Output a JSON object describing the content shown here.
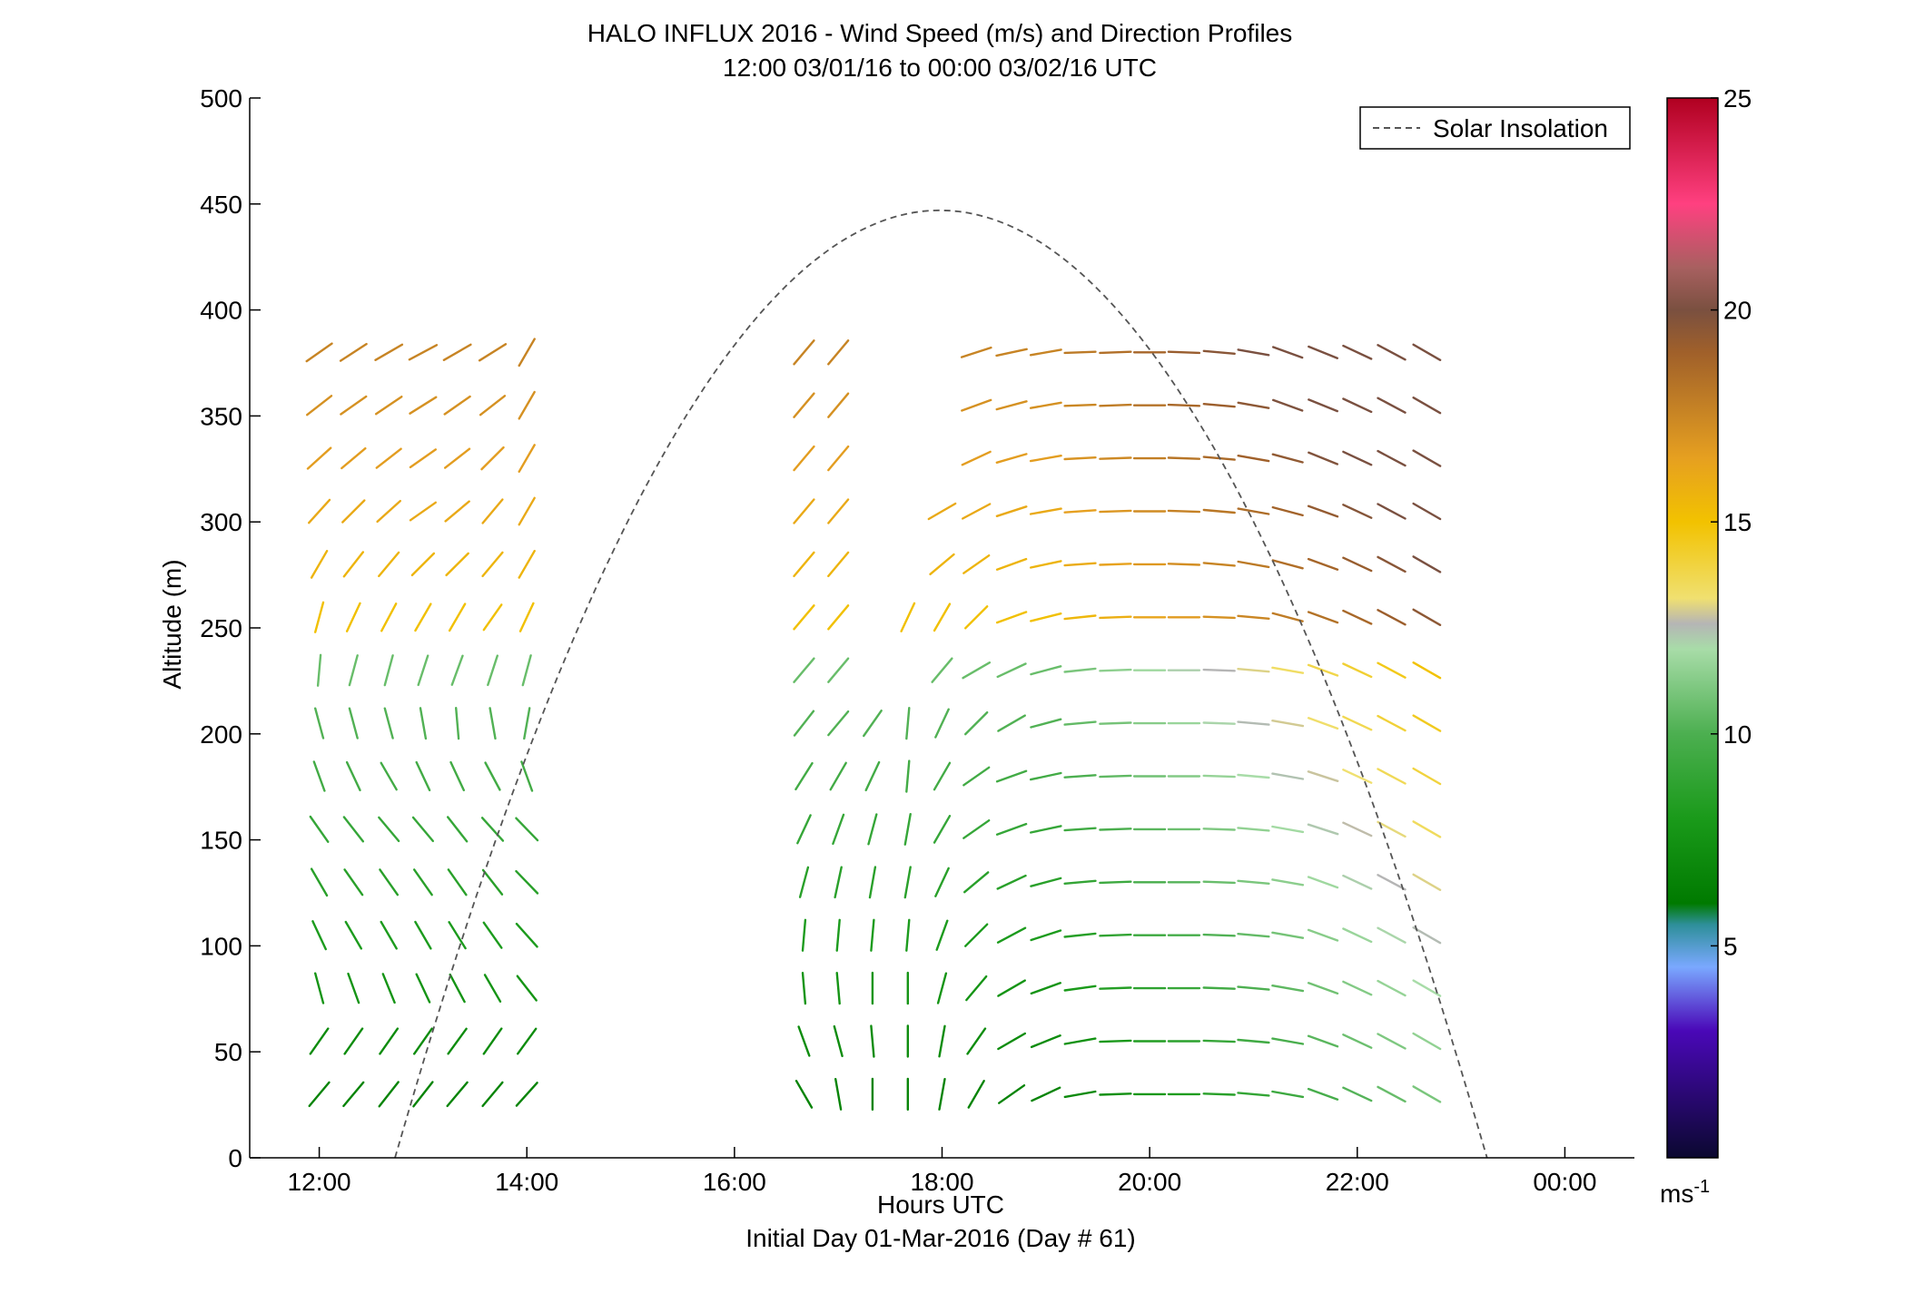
{
  "chart_data": {
    "type": "wind-barb-profile",
    "title": "HALO INFLUX 2016 - Wind Speed (m/s) and Direction Profiles",
    "subtitle": "12:00 03/01/16 to 00:00 03/02/16  UTC",
    "xlabel": "Hours UTC",
    "xlabel2": "Initial Day 01-Mar-2016 (Day # 61)",
    "ylabel": "Altitude (m)",
    "xlim_hours": [
      11.33,
      24.67
    ],
    "ylim": [
      0,
      500
    ],
    "x_ticks": [
      {
        "h": 12,
        "label": "12:00"
      },
      {
        "h": 14,
        "label": "14:00"
      },
      {
        "h": 16,
        "label": "16:00"
      },
      {
        "h": 18,
        "label": "18:00"
      },
      {
        "h": 20,
        "label": "20:00"
      },
      {
        "h": 22,
        "label": "22:00"
      },
      {
        "h": 24,
        "label": "00:00"
      }
    ],
    "y_ticks": [
      0,
      50,
      100,
      150,
      200,
      250,
      300,
      350,
      400,
      450,
      500
    ],
    "legend": {
      "label": "Solar Insolation",
      "position": "top-right"
    },
    "solar_insolation_curve": {
      "sunrise_h": 12.73,
      "peak_h": 17.98,
      "peak_alt": 447,
      "sunset_h": 23.25
    },
    "colorbar": {
      "min": 0,
      "max": 25,
      "ticks": [
        5,
        10,
        15,
        20,
        25
      ],
      "unit": "ms",
      "unit_exp": "-1",
      "stops": [
        [
          0,
          "#0b0830"
        ],
        [
          3,
          "#4a08b8"
        ],
        [
          4.5,
          "#7aa8ff"
        ],
        [
          5.5,
          "#2e8f9a"
        ],
        [
          6,
          "#007a00"
        ],
        [
          8,
          "#1a9a1a"
        ],
        [
          10,
          "#4caf50"
        ],
        [
          12,
          "#a8dca8"
        ],
        [
          12.6,
          "#b5b5b5"
        ],
        [
          13.2,
          "#f0e070"
        ],
        [
          15,
          "#f2c200"
        ],
        [
          16.5,
          "#e6a020"
        ],
        [
          19,
          "#a0602a"
        ],
        [
          20,
          "#7a5040"
        ],
        [
          21,
          "#a86060"
        ],
        [
          22.5,
          "#ff4080"
        ],
        [
          25,
          "#b00020"
        ]
      ]
    },
    "wind_profiles": [
      {
        "t": 12.0,
        "dir": [
          40,
          35,
          345,
          335,
          330,
          325,
          340,
          345,
          5,
          15,
          30,
          42,
          48,
          52,
          55
        ]
      },
      {
        "t": 12.33,
        "dir": [
          40,
          35,
          340,
          330,
          325,
          322,
          335,
          345,
          15,
          25,
          38,
          45,
          50,
          55,
          57
        ]
      },
      {
        "t": 12.67,
        "dir": [
          38,
          35,
          338,
          330,
          325,
          320,
          330,
          345,
          15,
          28,
          40,
          48,
          52,
          56,
          60
        ]
      },
      {
        "t": 13.0,
        "dir": [
          38,
          35,
          335,
          330,
          325,
          320,
          335,
          350,
          18,
          30,
          45,
          55,
          55,
          58,
          62
        ]
      },
      {
        "t": 13.33,
        "dir": [
          40,
          36,
          332,
          328,
          325,
          322,
          335,
          355,
          20,
          30,
          45,
          50,
          52,
          55,
          60
        ]
      },
      {
        "t": 13.67,
        "dir": [
          40,
          35,
          330,
          325,
          322,
          318,
          332,
          350,
          18,
          35,
          40,
          40,
          45,
          52,
          58
        ]
      },
      {
        "t": 14.0,
        "dir": [
          42,
          36,
          322,
          318,
          316,
          316,
          340,
          10,
          15,
          25,
          30,
          30,
          30,
          30,
          30
        ]
      },
      {
        "t": 16.67,
        "dir": [
          330,
          340,
          355,
          5,
          15,
          25,
          32,
          38,
          40,
          40,
          40,
          40,
          40,
          40,
          40
        ]
      },
      {
        "t": 17.0,
        "dir": [
          350,
          345,
          355,
          5,
          12,
          20,
          30,
          40,
          40,
          40,
          40,
          40,
          40,
          40,
          40
        ]
      },
      {
        "t": 17.33,
        "dir": [
          360,
          355,
          0,
          5,
          10,
          15,
          25,
          35,
          null,
          null,
          null,
          null,
          null,
          null,
          null
        ]
      },
      {
        "t": 17.67,
        "dir": [
          0,
          0,
          0,
          5,
          10,
          10,
          5,
          5,
          null,
          25,
          null,
          null,
          null,
          null,
          null
        ]
      },
      {
        "t": 18.0,
        "dir": [
          10,
          10,
          15,
          20,
          25,
          30,
          30,
          25,
          40,
          30,
          50,
          60,
          null,
          null,
          null
        ]
      },
      {
        "t": 18.33,
        "dir": [
          30,
          35,
          40,
          45,
          50,
          55,
          55,
          45,
          60,
          45,
          55,
          62,
          65,
          70,
          72
        ]
      },
      {
        "t": 18.67,
        "dir": [
          55,
          60,
          60,
          62,
          65,
          70,
          70,
          60,
          65,
          70,
          70,
          72,
          74,
          75,
          78
        ]
      },
      {
        "t": 19.0,
        "dir": [
          65,
          68,
          70,
          72,
          75,
          78,
          78,
          75,
          75,
          76,
          78,
          80,
          80,
          80,
          80
        ]
      },
      {
        "t": 19.33,
        "dir": [
          80,
          80,
          82,
          84,
          85,
          86,
          86,
          85,
          84,
          84,
          86,
          86,
          87,
          88,
          88
        ]
      },
      {
        "t": 19.67,
        "dir": [
          88,
          88,
          88,
          88,
          88,
          88,
          88,
          88,
          88,
          88,
          88,
          88,
          88,
          88,
          88
        ]
      },
      {
        "t": 20.0,
        "dir": [
          90,
          90,
          90,
          90,
          90,
          90,
          90,
          90,
          90,
          90,
          90,
          90,
          90,
          90,
          90
        ]
      },
      {
        "t": 20.33,
        "dir": [
          90,
          90,
          90,
          90,
          90,
          90,
          90,
          90,
          90,
          90,
          92,
          92,
          92,
          92,
          92
        ]
      },
      {
        "t": 20.67,
        "dir": [
          92,
          92,
          92,
          92,
          92,
          92,
          92,
          92,
          92,
          92,
          95,
          95,
          95,
          95,
          95
        ]
      },
      {
        "t": 21.0,
        "dir": [
          95,
          95,
          95,
          95,
          95,
          95,
          95,
          95,
          95,
          95,
          100,
          100,
          100,
          100,
          100
        ]
      },
      {
        "t": 21.33,
        "dir": [
          100,
          100,
          100,
          100,
          100,
          100,
          100,
          100,
          100,
          105,
          105,
          105,
          105,
          110,
          110
        ]
      },
      {
        "t": 21.67,
        "dir": [
          110,
          110,
          110,
          110,
          110,
          108,
          108,
          110,
          110,
          110,
          110,
          110,
          112,
          112,
          112
        ]
      },
      {
        "t": 22.0,
        "dir": [
          115,
          115,
          115,
          115,
          115,
          115,
          115,
          115,
          115,
          115,
          115,
          115,
          115,
          115,
          115
        ]
      },
      {
        "t": 22.33,
        "dir": [
          118,
          118,
          118,
          118,
          118,
          118,
          118,
          118,
          118,
          118,
          118,
          118,
          118,
          118,
          118
        ]
      },
      {
        "t": 22.67,
        "dir": [
          120,
          120,
          120,
          120,
          120,
          120,
          120,
          120,
          120,
          120,
          120,
          120,
          120,
          120,
          120
        ]
      }
    ],
    "wind_profile_alts": [
      30,
      55,
      80,
      105,
      130,
      155,
      180,
      205,
      230,
      255,
      280,
      305,
      330,
      355,
      380
    ]
  }
}
